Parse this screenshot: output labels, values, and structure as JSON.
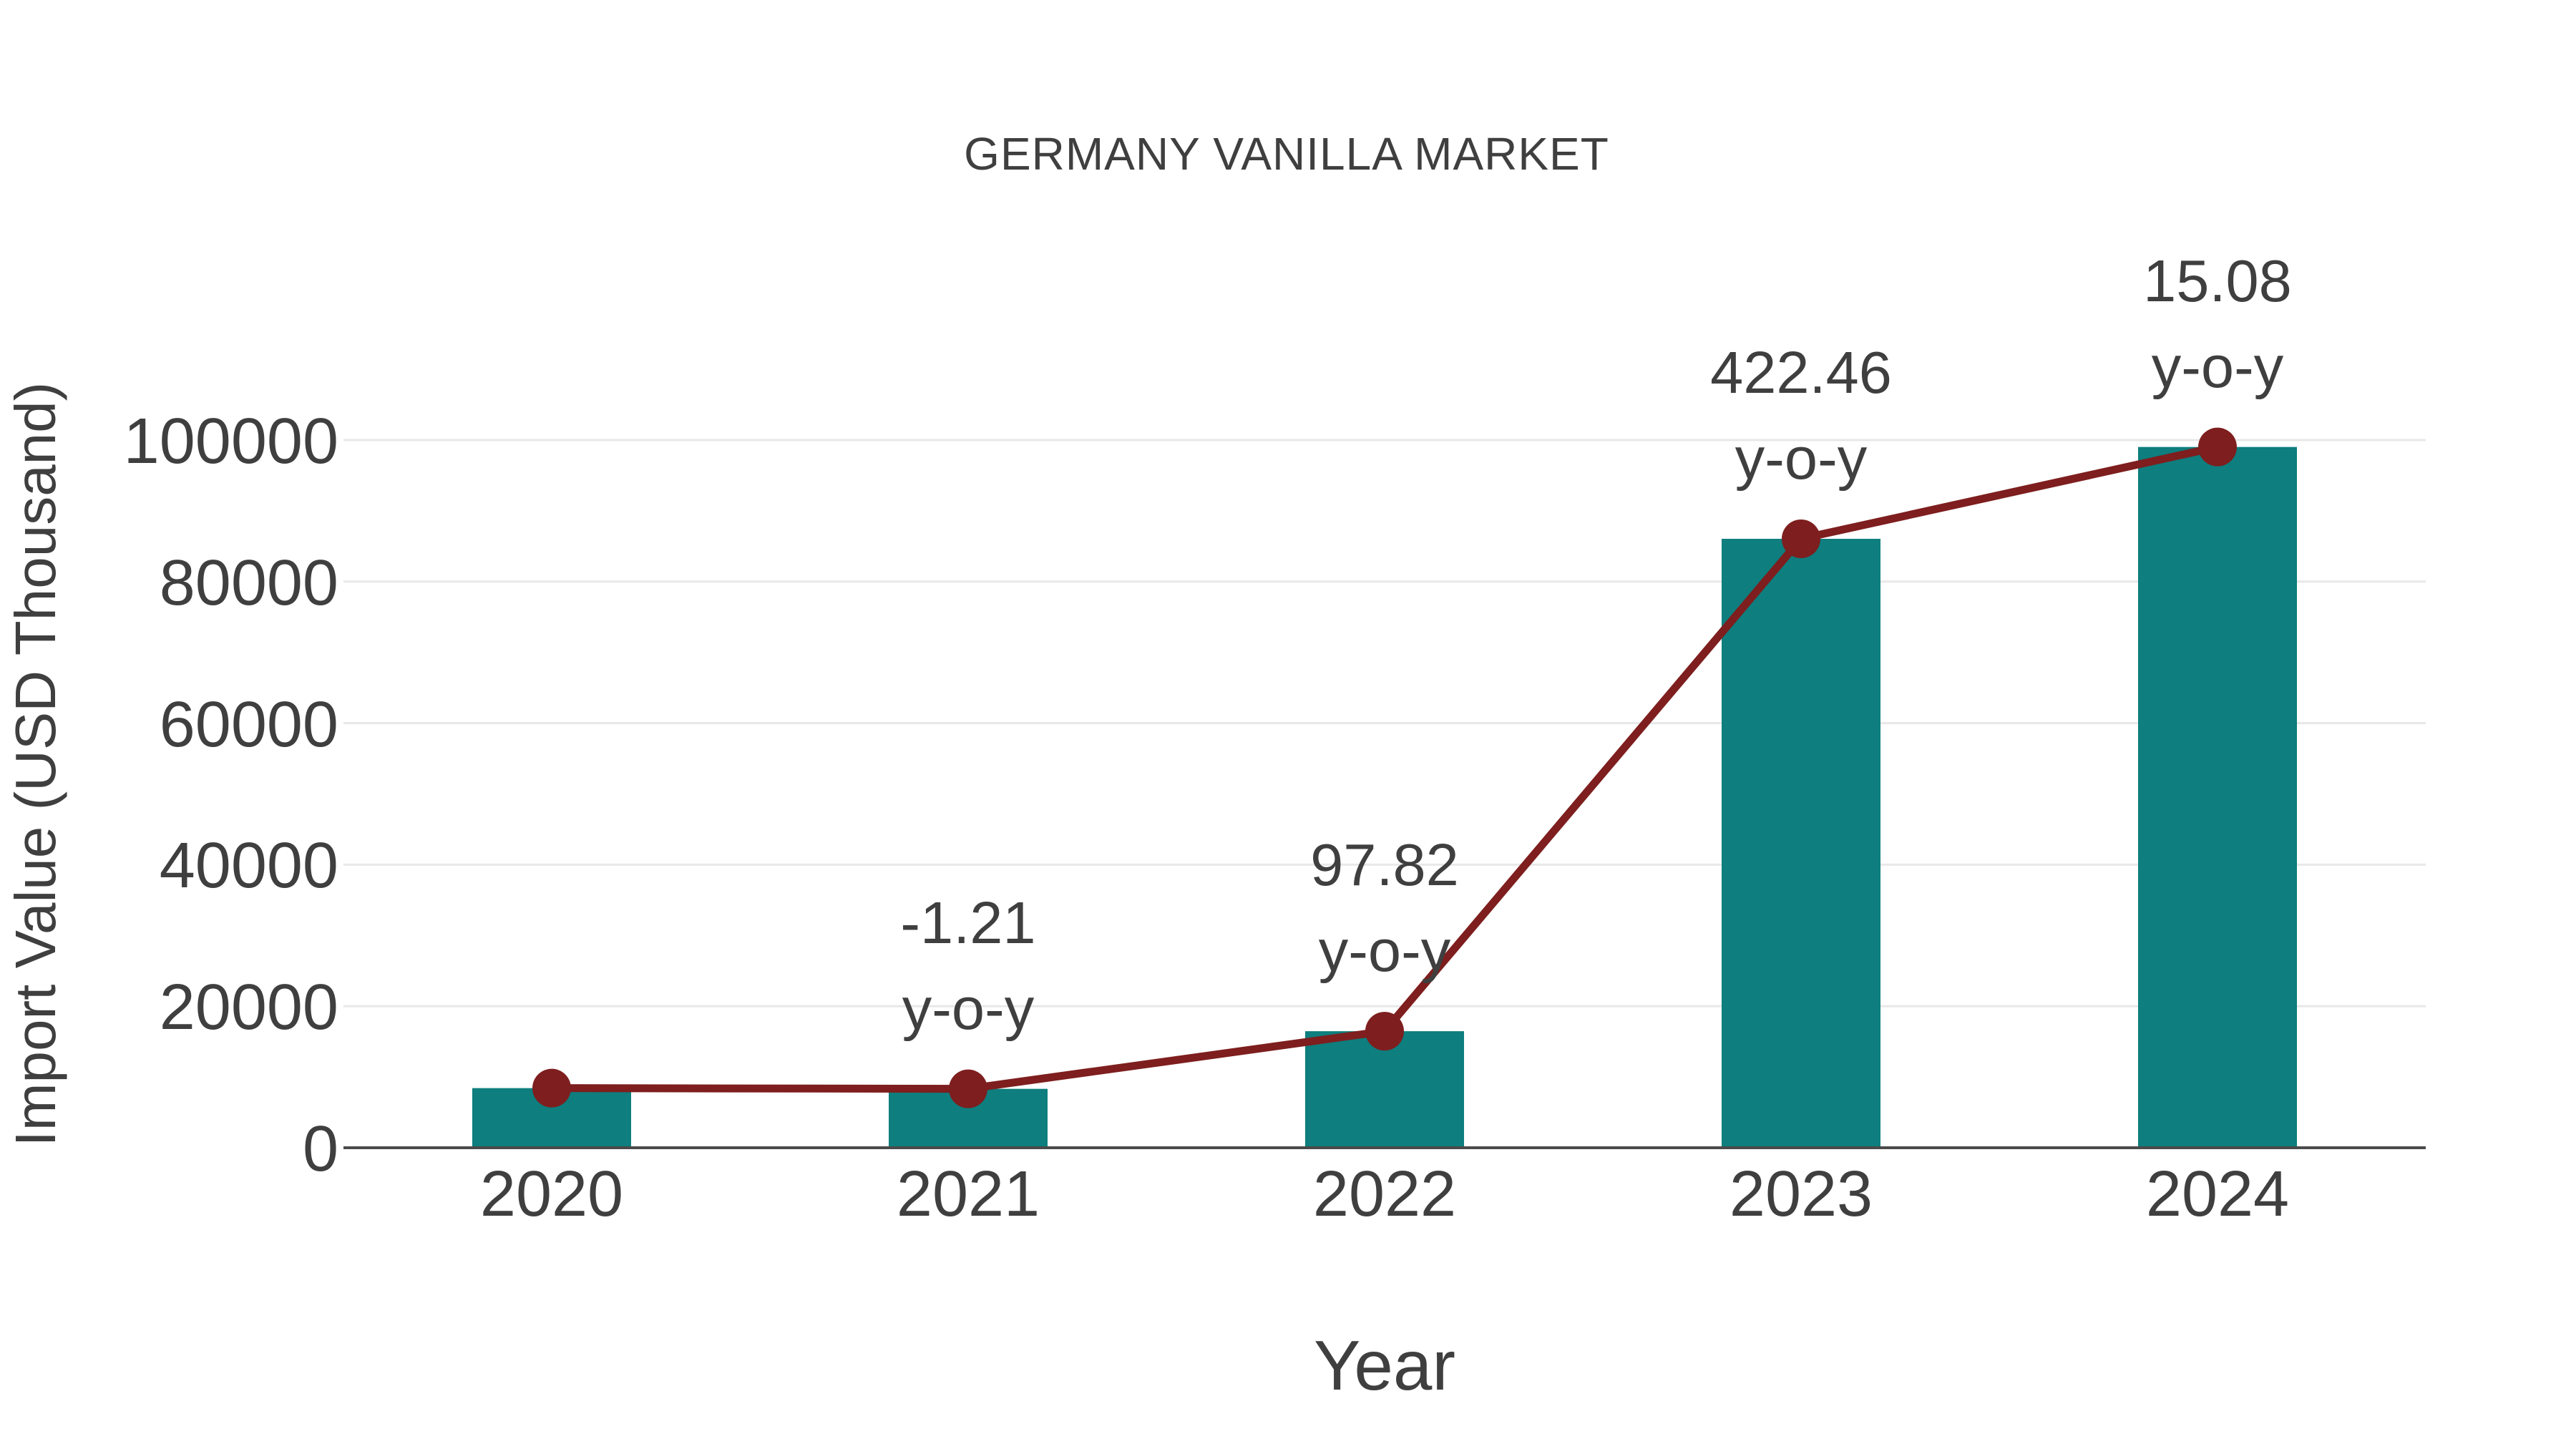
{
  "chart": {
    "title": "GERMANY VANILLA MARKET",
    "x_axis_title": "Year",
    "y_axis_title": "Import Value (USD Thousand)"
  },
  "chart_data": {
    "type": "bar",
    "title": "GERMANY VANILLA MARKET",
    "xlabel": "Year",
    "ylabel": "Import Value (USD Thousand)",
    "categories": [
      "2020",
      "2021",
      "2022",
      "2023",
      "2024"
    ],
    "series": [
      {
        "name": "Import Value (USD Thousand)",
        "type": "bar",
        "color": "#0E7E7E",
        "values": [
          8427,
          8325,
          16469,
          86047,
          99024
        ]
      },
      {
        "name": "Import Value trend line",
        "type": "line",
        "color": "#7E1E1E",
        "values": [
          8427,
          8325,
          16469,
          86047,
          99024
        ]
      }
    ],
    "annotations": [
      {
        "category": "2021",
        "value": "-1.21",
        "suffix": "y-o-y"
      },
      {
        "category": "2022",
        "value": "97.82",
        "suffix": "y-o-y"
      },
      {
        "category": "2023",
        "value": "422.46",
        "suffix": "y-o-y"
      },
      {
        "category": "2024",
        "value": "15.08",
        "suffix": "y-o-y"
      }
    ],
    "ylim": [
      0,
      100000
    ],
    "yticks": [
      0,
      20000,
      40000,
      60000,
      80000,
      100000
    ],
    "grid": "horizontal-light-gray",
    "legend": "none",
    "colors": {
      "bar": "#0E7E7E",
      "line": "#7E1E1E",
      "marker": "#7E1E1E",
      "gridline": "#E8E8E8",
      "axis_line": "#4A4A4A",
      "text": "#3F3F3F",
      "background": "#FFFFFF"
    }
  }
}
